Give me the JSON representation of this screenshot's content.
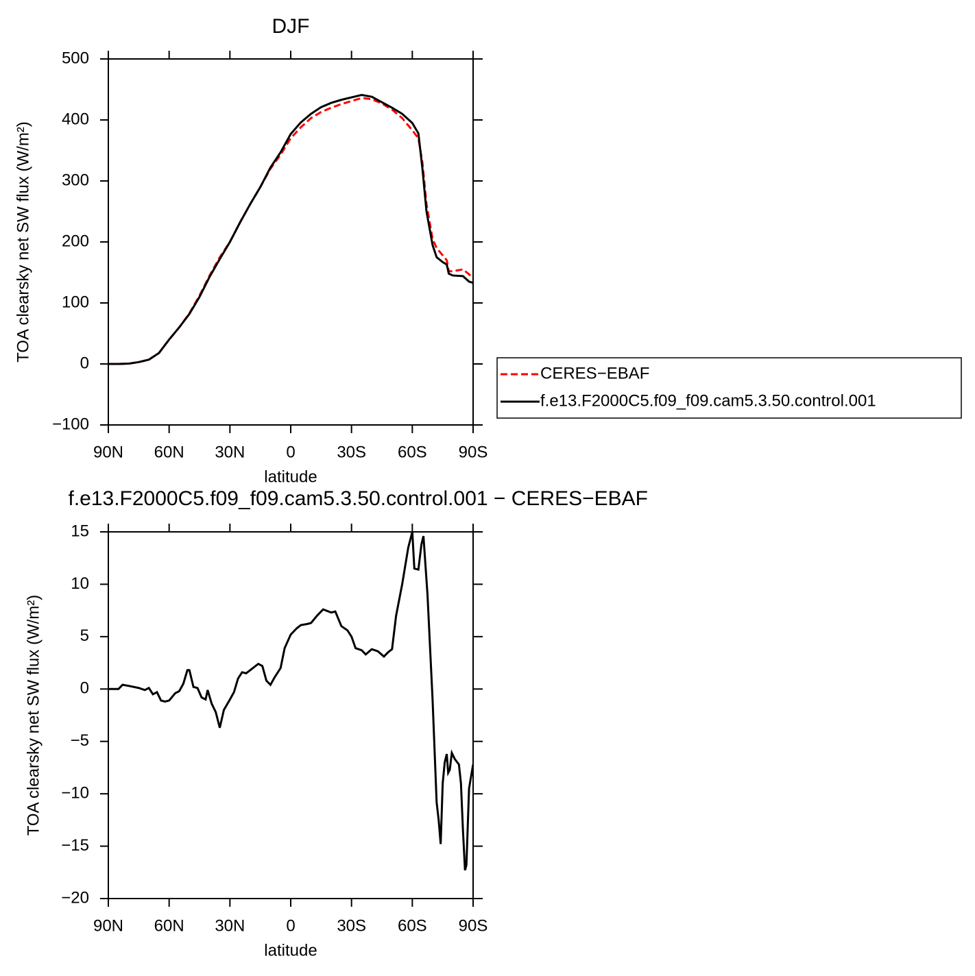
{
  "chart_data": [
    {
      "type": "line",
      "title": "DJF",
      "xlabel": "latitude",
      "ylabel": "TOA clearsky net SW flux (W/m²)",
      "xlim": [
        90,
        -90
      ],
      "ylim": [
        -100,
        500
      ],
      "xticks": [
        {
          "value": 90,
          "label": "90N"
        },
        {
          "value": 60,
          "label": "60N"
        },
        {
          "value": 30,
          "label": "30N"
        },
        0,
        {
          "value": -30,
          "label": "30S"
        },
        {
          "value": -60,
          "label": "60S"
        },
        {
          "value": -90,
          "label": "90S"
        }
      ],
      "yticks": [
        {
          "value": -100,
          "label": "−100"
        },
        0,
        100,
        200,
        300,
        400,
        500
      ],
      "legend": "outside-right",
      "x": [
        90,
        85,
        80,
        75,
        70,
        65,
        60,
        55,
        50,
        45,
        40,
        35,
        30,
        25,
        20,
        15,
        10,
        5,
        0,
        -5,
        -10,
        -15,
        -20,
        -25,
        -30,
        -35,
        -40,
        -45,
        -50,
        -55,
        -60,
        -63,
        -65,
        -67,
        -70,
        -72,
        -75,
        -77,
        -78,
        -80,
        -85,
        -88,
        -90
      ],
      "series": [
        {
          "name": "CERES−EBAF",
          "color": "#ff0000",
          "dash": true,
          "values": [
            0,
            0,
            0.5,
            3,
            7,
            18,
            40,
            60,
            83,
            112,
            145,
            175,
            200,
            232,
            262,
            290,
            320,
            343,
            370,
            388,
            403,
            413,
            420,
            426,
            431,
            436,
            434,
            427,
            417,
            403,
            383,
            370,
            330,
            262,
            205,
            190,
            178,
            170,
            152,
            152,
            155,
            147,
            140
          ]
        },
        {
          "name": "f.e13.F2000C5.f09_f09.cam5.3.50.control.001",
          "color": "#000000",
          "dash": false,
          "values": [
            0,
            0,
            0.5,
            3,
            7,
            18,
            40,
            60,
            82,
            110,
            143,
            172,
            200,
            232,
            262,
            290,
            322,
            347,
            377,
            396,
            410,
            421,
            428,
            433,
            437,
            441,
            438,
            429,
            420,
            410,
            395,
            378,
            320,
            250,
            195,
            175,
            167,
            163,
            148,
            145,
            144,
            135,
            133
          ]
        }
      ]
    },
    {
      "type": "line",
      "title": "f.e13.F2000C5.f09_f09.cam5.3.50.control.001 − CERES−EBAF",
      "xlabel": "latitude",
      "ylabel": "TOA clearsky net SW flux (W/m²)",
      "xlim": [
        90,
        -90
      ],
      "ylim": [
        -20,
        15
      ],
      "xticks": [
        {
          "value": 90,
          "label": "90N"
        },
        {
          "value": 60,
          "label": "60N"
        },
        {
          "value": 30,
          "label": "30N"
        },
        0,
        {
          "value": -30,
          "label": "30S"
        },
        {
          "value": -60,
          "label": "60S"
        },
        {
          "value": -90,
          "label": "90S"
        }
      ],
      "yticks": [
        {
          "value": -20,
          "label": "−20"
        },
        {
          "value": -15,
          "label": "−15"
        },
        {
          "value": -10,
          "label": "−10"
        },
        {
          "value": -5,
          "label": "−5"
        },
        0,
        5,
        10,
        15
      ],
      "x": [
        90,
        85,
        83,
        80,
        75,
        72,
        70,
        68,
        66,
        64,
        62,
        60,
        57,
        55,
        53,
        51,
        50,
        48,
        46,
        44,
        42,
        41,
        39,
        37,
        35,
        33,
        30,
        28,
        26,
        24,
        22,
        20,
        18,
        16,
        14,
        12,
        10,
        8,
        5,
        3,
        0,
        -3,
        -5,
        -8,
        -10,
        -13,
        -16,
        -20,
        -22,
        -25,
        -28,
        -30,
        -32,
        -35,
        -37,
        -40,
        -43,
        -46,
        -48,
        -50,
        -52,
        -55,
        -58,
        -60,
        -61,
        -63,
        -64.5,
        -65.5,
        -67.5,
        -70,
        -72,
        -73,
        -74,
        -75,
        -76,
        -77,
        -77.7,
        -78.5,
        -79.5,
        -81,
        -83,
        -84,
        -85,
        -86,
        -86.7,
        -88,
        -90
      ],
      "series": [
        {
          "color": "#000000",
          "dash": false,
          "values": [
            0,
            0,
            0.4,
            0.3,
            0.1,
            -0.1,
            0.1,
            -0.5,
            -0.3,
            -1.1,
            -1.2,
            -1.1,
            -0.4,
            -0.2,
            0.5,
            1.8,
            1.8,
            0.2,
            0.1,
            -0.8,
            -1.0,
            -0.1,
            -1.4,
            -2.2,
            -3.7,
            -2.0,
            -1.0,
            -0.3,
            1.0,
            1.6,
            1.5,
            1.8,
            2.1,
            2.4,
            2.2,
            0.8,
            0.4,
            1.1,
            2.0,
            3.9,
            5.2,
            5.8,
            6.1,
            6.2,
            6.3,
            7.0,
            7.6,
            7.3,
            7.4,
            6.0,
            5.6,
            5.0,
            3.9,
            3.7,
            3.3,
            3.8,
            3.6,
            3.1,
            3.5,
            3.8,
            7.0,
            10.0,
            13.5,
            15.0,
            11.5,
            11.4,
            13.8,
            14.6,
            9.0,
            -1.0,
            -10.8,
            -12.5,
            -14.8,
            -9.0,
            -7.0,
            -6.2,
            -8.0,
            -7.7,
            -6.1,
            -6.7,
            -7.2,
            -9.0,
            -13.5,
            -17.3,
            -16.8,
            -9.5,
            -7.2
          ]
        }
      ]
    }
  ]
}
